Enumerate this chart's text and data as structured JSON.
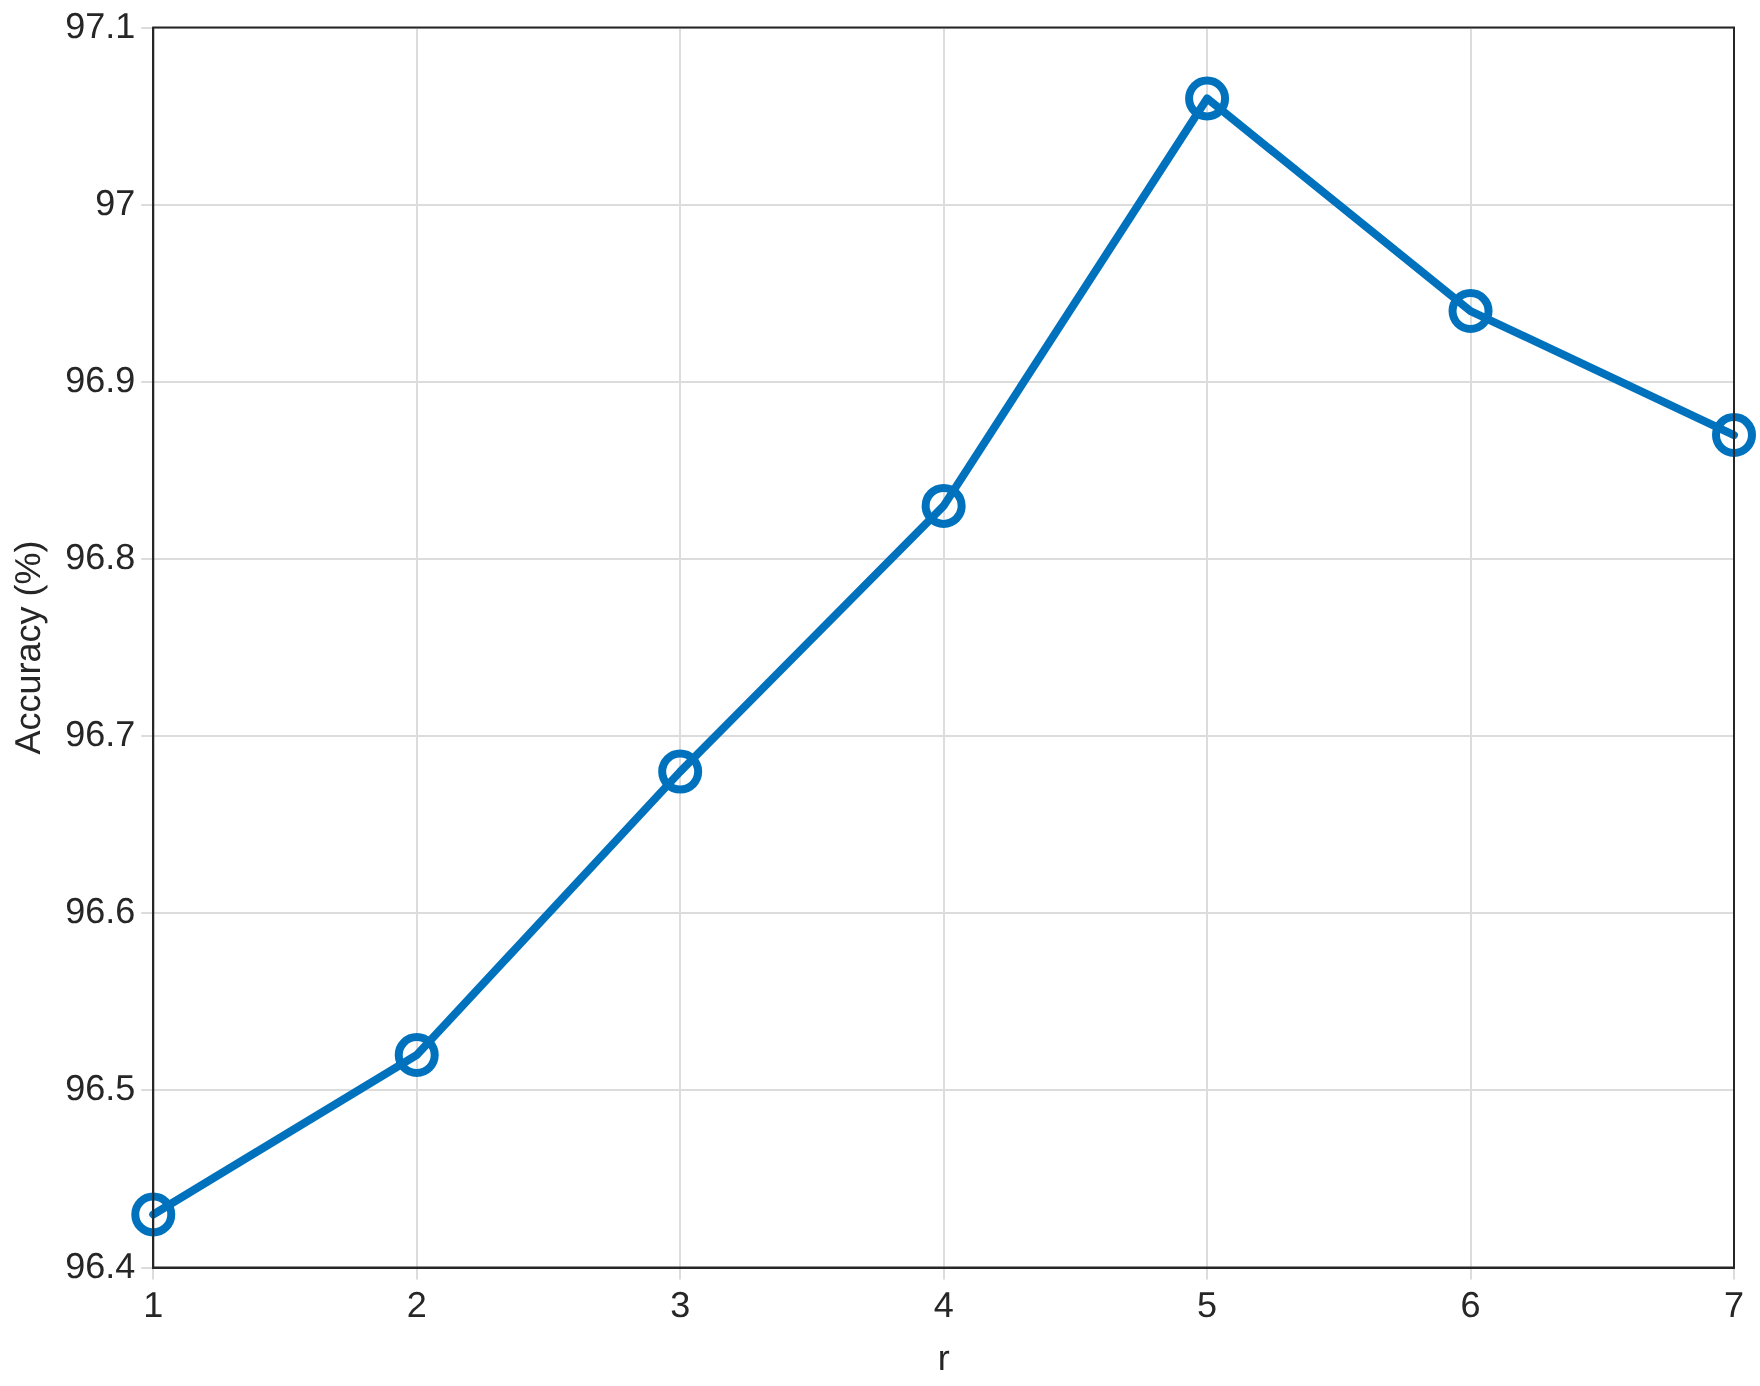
{
  "chart_data": {
    "type": "line",
    "xlabel": "r",
    "ylabel": "Accuracy (%)",
    "x": [
      1,
      2,
      3,
      4,
      5,
      6,
      7
    ],
    "series": [
      {
        "color": "#0072bd",
        "values": [
          96.43,
          96.52,
          96.68,
          96.83,
          97.06,
          96.94,
          96.87
        ]
      }
    ],
    "xlim": [
      1,
      7
    ],
    "xticks": [
      1,
      2,
      3,
      4,
      5,
      6,
      7
    ],
    "ylim": [
      96.4,
      97.1
    ],
    "yticks": [
      96.4,
      96.5,
      96.6,
      96.7,
      96.8,
      96.9,
      97,
      97.1
    ],
    "grid": true,
    "legend": false,
    "marker": "circle",
    "line_style": "solid"
  }
}
